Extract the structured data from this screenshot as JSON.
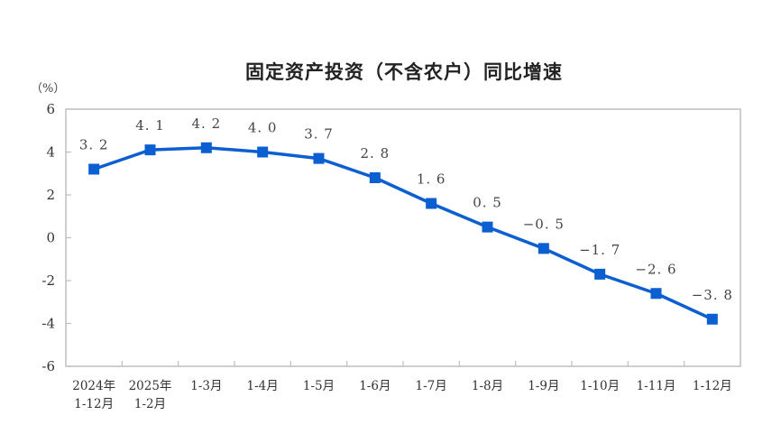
{
  "header": {
    "title": "固定资产投资（不含农户）同比增速",
    "unit": "（%）"
  },
  "colors": {
    "series": "#0b5fd0",
    "axis": "#bfbfbf",
    "text": "#333333"
  },
  "chart_data": {
    "type": "line",
    "title": "固定资产投资（不含农户）同比增速",
    "xlabel": "",
    "ylabel": "（%）",
    "ylim": [
      -6,
      6
    ],
    "yticks": [
      6,
      4,
      2,
      0,
      -2,
      -4,
      -6
    ],
    "grid": false,
    "legend": null,
    "categories": [
      [
        "2024年",
        "1-12月"
      ],
      [
        "2025年",
        "1-2月"
      ],
      [
        "1-3月"
      ],
      [
        "1-4月"
      ],
      [
        "1-5月"
      ],
      [
        "1-6月"
      ],
      [
        "1-7月"
      ],
      [
        "1-8月"
      ],
      [
        "1-9月"
      ],
      [
        "1-10月"
      ],
      [
        "1-11月"
      ],
      [
        "1-12月"
      ]
    ],
    "series": [
      {
        "name": "固定资产投资（不含农户）同比增速",
        "values": [
          3.2,
          4.1,
          4.2,
          4.0,
          3.7,
          2.8,
          1.6,
          0.5,
          -0.5,
          -1.7,
          -2.6,
          -3.8
        ],
        "labels": [
          "3. 2",
          "4. 1",
          "4. 2",
          "4. 0",
          "3. 7",
          "2. 8",
          "1. 6",
          "0. 5",
          "−0. 5",
          "−1. 7",
          "−2. 6",
          "−3. 8"
        ],
        "marker": "square"
      }
    ]
  }
}
